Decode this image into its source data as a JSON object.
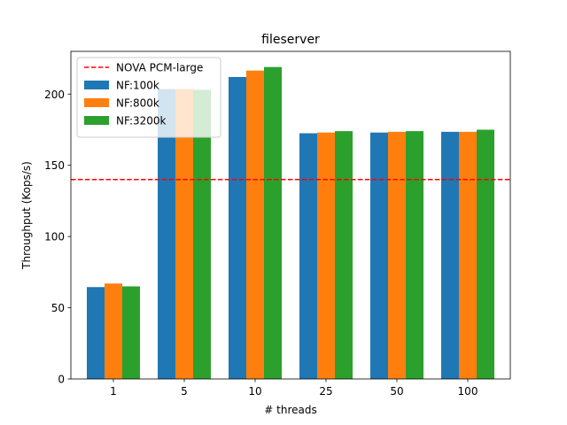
{
  "chart_data": {
    "type": "bar",
    "title": "fileserver",
    "xlabel": "# threads",
    "ylabel": "Throughput (Kops/s)",
    "categories": [
      "1",
      "5",
      "10",
      "25",
      "50",
      "100"
    ],
    "ylim": [
      0,
      230
    ],
    "yticks": [
      0,
      50,
      100,
      150,
      200
    ],
    "grid": false,
    "legend_position": "top-left",
    "series": [
      {
        "name": "NF:100k",
        "color": "#1f77b4",
        "values": [
          64.5,
          203.5,
          212.0,
          172.5,
          173.0,
          173.5
        ]
      },
      {
        "name": "NF:800k",
        "color": "#ff7f0e",
        "values": [
          67.0,
          203.5,
          216.5,
          173.0,
          173.5,
          173.5
        ]
      },
      {
        "name": "NF:3200k",
        "color": "#2ca02c",
        "values": [
          65.0,
          203.0,
          219.0,
          174.0,
          174.0,
          175.0
        ]
      }
    ],
    "reference_lines": [
      {
        "name": "NOVA PCM-large",
        "value": 140,
        "color": "#ff0000",
        "style": "dashed"
      }
    ]
  }
}
